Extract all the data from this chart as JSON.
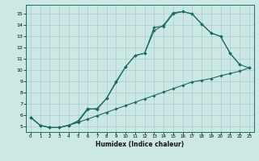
{
  "xlabel": "Humidex (Indice chaleur)",
  "bg_color": "#cce8e4",
  "grid_color": "#aacccc",
  "line_color": "#1e6b5e",
  "xlim": [
    -0.5,
    23.5
  ],
  "ylim": [
    4.5,
    15.8
  ],
  "xticks": [
    0,
    1,
    2,
    3,
    4,
    5,
    6,
    7,
    8,
    9,
    10,
    11,
    12,
    13,
    14,
    15,
    16,
    17,
    18,
    19,
    20,
    21,
    22,
    23
  ],
  "yticks": [
    5,
    6,
    7,
    8,
    9,
    10,
    11,
    12,
    13,
    14,
    15
  ],
  "line1_x": [
    0,
    1,
    2,
    3,
    4,
    5,
    6,
    7,
    8,
    9,
    10,
    11,
    12,
    13,
    14,
    15,
    16,
    17,
    18,
    19,
    20,
    21,
    22,
    23
  ],
  "line1_y": [
    5.8,
    5.1,
    4.9,
    4.9,
    5.1,
    5.35,
    5.65,
    5.95,
    6.25,
    6.55,
    6.85,
    7.15,
    7.45,
    7.75,
    8.05,
    8.35,
    8.65,
    8.95,
    9.1,
    9.25,
    9.5,
    9.7,
    9.9,
    10.2
  ],
  "line2_x": [
    0,
    1,
    2,
    3,
    4,
    5,
    6,
    7,
    8,
    9,
    10,
    11,
    12,
    13,
    14,
    15,
    16,
    17,
    18,
    19,
    20,
    21,
    22
  ],
  "line2_y": [
    5.8,
    5.1,
    4.9,
    4.9,
    5.1,
    5.4,
    6.5,
    6.6,
    7.5,
    8.9,
    10.3,
    11.3,
    11.5,
    13.8,
    13.9,
    15.0,
    15.2,
    15.0,
    14.1,
    13.3,
    13.0,
    11.5,
    10.5
  ],
  "line3_x": [
    0,
    1,
    2,
    3,
    4,
    5,
    6,
    7,
    8,
    9,
    10,
    11,
    12,
    13,
    14,
    15,
    16,
    17,
    18,
    19,
    20,
    21,
    22,
    23
  ],
  "line3_y": [
    5.8,
    5.1,
    4.9,
    4.9,
    5.1,
    5.5,
    6.6,
    6.5,
    7.5,
    9.0,
    10.3,
    11.3,
    11.5,
    13.5,
    14.0,
    15.1,
    15.2,
    15.0,
    14.1,
    13.3,
    13.0,
    11.5,
    10.5,
    10.2
  ]
}
